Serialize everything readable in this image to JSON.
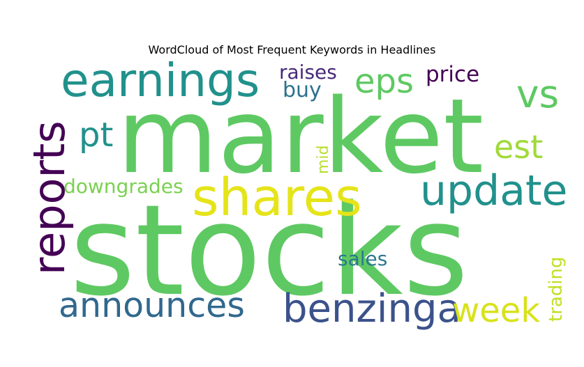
{
  "chart_data": {
    "type": "wordcloud",
    "title": "WordCloud of Most Frequent Keywords in Headlines",
    "words": [
      {
        "text": "stocks",
        "weight": 1.0,
        "color": "#5ec962",
        "orientation": "horizontal"
      },
      {
        "text": "market",
        "weight": 0.9,
        "color": "#5ec962",
        "orientation": "horizontal"
      },
      {
        "text": "shares",
        "weight": 0.45,
        "color": "#e5e419",
        "orientation": "horizontal"
      },
      {
        "text": "earnings",
        "weight": 0.42,
        "color": "#21918c",
        "orientation": "horizontal"
      },
      {
        "text": "reports",
        "weight": 0.4,
        "color": "#440154",
        "orientation": "vertical"
      },
      {
        "text": "update",
        "weight": 0.36,
        "color": "#21918c",
        "orientation": "horizontal"
      },
      {
        "text": "benzinga",
        "weight": 0.34,
        "color": "#3b528b",
        "orientation": "horizontal"
      },
      {
        "text": "announces",
        "weight": 0.3,
        "color": "#31688e",
        "orientation": "horizontal"
      },
      {
        "text": "week",
        "weight": 0.3,
        "color": "#d8e219",
        "orientation": "horizontal"
      },
      {
        "text": "vs",
        "weight": 0.3,
        "color": "#5ec962",
        "orientation": "horizontal"
      },
      {
        "text": "eps",
        "weight": 0.28,
        "color": "#5ec962",
        "orientation": "horizontal"
      },
      {
        "text": "pt",
        "weight": 0.26,
        "color": "#21918c",
        "orientation": "horizontal"
      },
      {
        "text": "est",
        "weight": 0.26,
        "color": "#a0da39",
        "orientation": "horizontal"
      },
      {
        "text": "price",
        "weight": 0.18,
        "color": "#440154",
        "orientation": "horizontal"
      },
      {
        "text": "buy",
        "weight": 0.18,
        "color": "#2c728e",
        "orientation": "horizontal"
      },
      {
        "text": "raises",
        "weight": 0.17,
        "color": "#482878",
        "orientation": "horizontal"
      },
      {
        "text": "downgrades",
        "weight": 0.16,
        "color": "#7ad151",
        "orientation": "horizontal"
      },
      {
        "text": "sales",
        "weight": 0.16,
        "color": "#2a788e",
        "orientation": "horizontal"
      },
      {
        "text": "trading",
        "weight": 0.15,
        "color": "#c2df23",
        "orientation": "vertical"
      },
      {
        "text": "mid",
        "weight": 0.13,
        "color": "#b5de2b",
        "orientation": "vertical"
      }
    ]
  }
}
